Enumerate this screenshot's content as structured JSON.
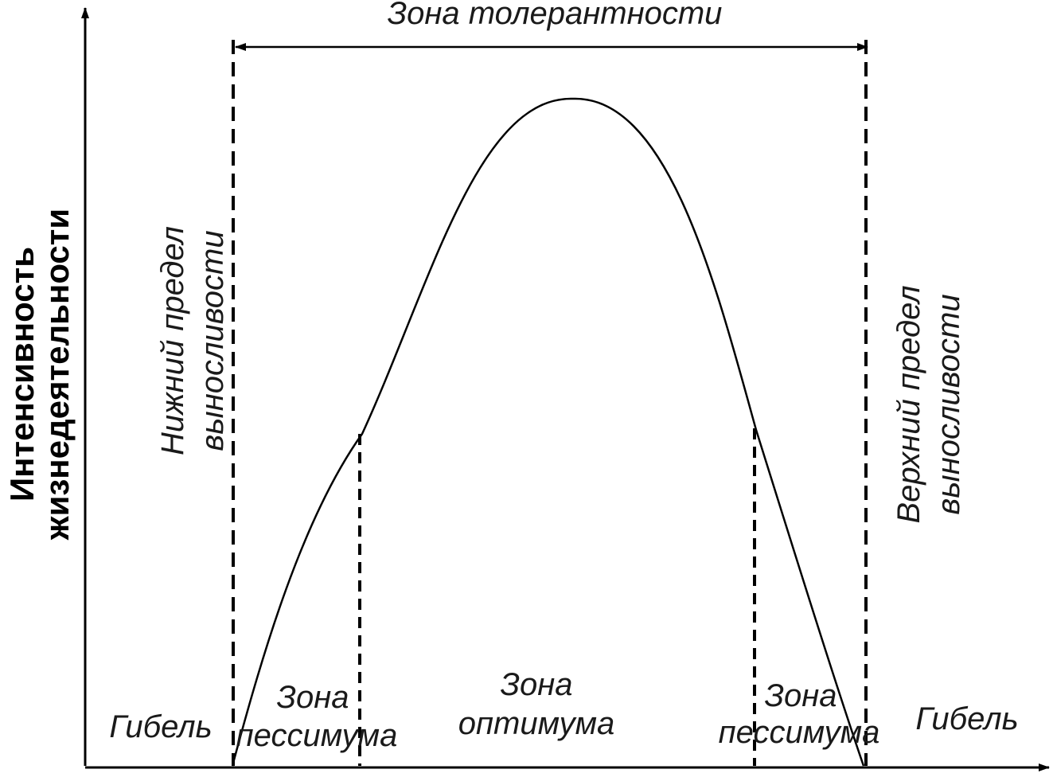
{
  "diagram": {
    "y_axis_label_line1": "Интенсивность",
    "y_axis_label_line2": "жизнедеятельности",
    "tolerance_zone": "Зона толерантности",
    "lower_limit_line1": "Нижний предел",
    "lower_limit_line2": "выносливости",
    "upper_limit_line1": "Верхний предел",
    "upper_limit_line2": "выносливости",
    "death_left": "Гибель",
    "death_right": "Гибель",
    "pessimum_left_line1": "Зона",
    "pessimum_left_line2": "пессимума",
    "optimum_line1": "Зона",
    "optimum_line2": "оптимума",
    "pessimum_right_line1": "Зона",
    "pessimum_right_line2": "пессимума"
  },
  "colors": {
    "line": "#000000",
    "text": "#1a1a1a"
  }
}
